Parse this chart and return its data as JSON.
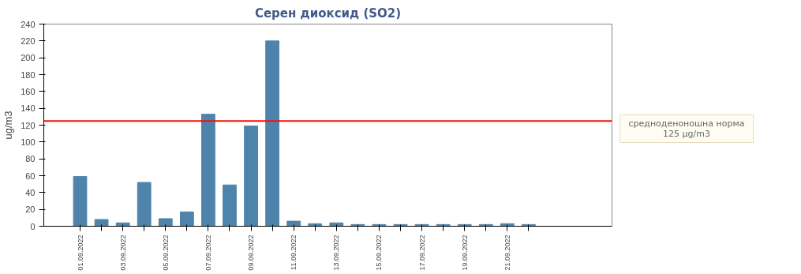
{
  "chart_data": {
    "type": "bar",
    "title": "Серен диоксид (SO2)",
    "ylabel": "ug/m3",
    "categories": [
      "01.09.2022",
      null,
      "03.09.2022",
      null,
      "05.09.2022",
      null,
      "07.09.2022",
      null,
      "09.09.2022",
      null,
      "11.09.2022",
      null,
      "13.09.2022",
      null,
      "15.09.2022",
      null,
      "17.09.2022",
      null,
      "19.09.2022",
      null,
      "21.09.2022",
      null
    ],
    "values": [
      59,
      8,
      4,
      52,
      9,
      17,
      133,
      49,
      119,
      220,
      6,
      3,
      4,
      2,
      2,
      2,
      2,
      2,
      2,
      2,
      3,
      2
    ],
    "color": "#4e84ab",
    "ylim": [
      0,
      240
    ],
    "yticks": [
      0,
      20,
      40,
      60,
      80,
      100,
      120,
      140,
      160,
      180,
      200,
      220,
      240
    ],
    "grid": false,
    "ref_lines": [
      {
        "axis": "y",
        "value": 125,
        "label": "средноденоношна норма 125 µg/m3",
        "color": "#ee1111",
        "line_style": "solid"
      }
    ]
  }
}
